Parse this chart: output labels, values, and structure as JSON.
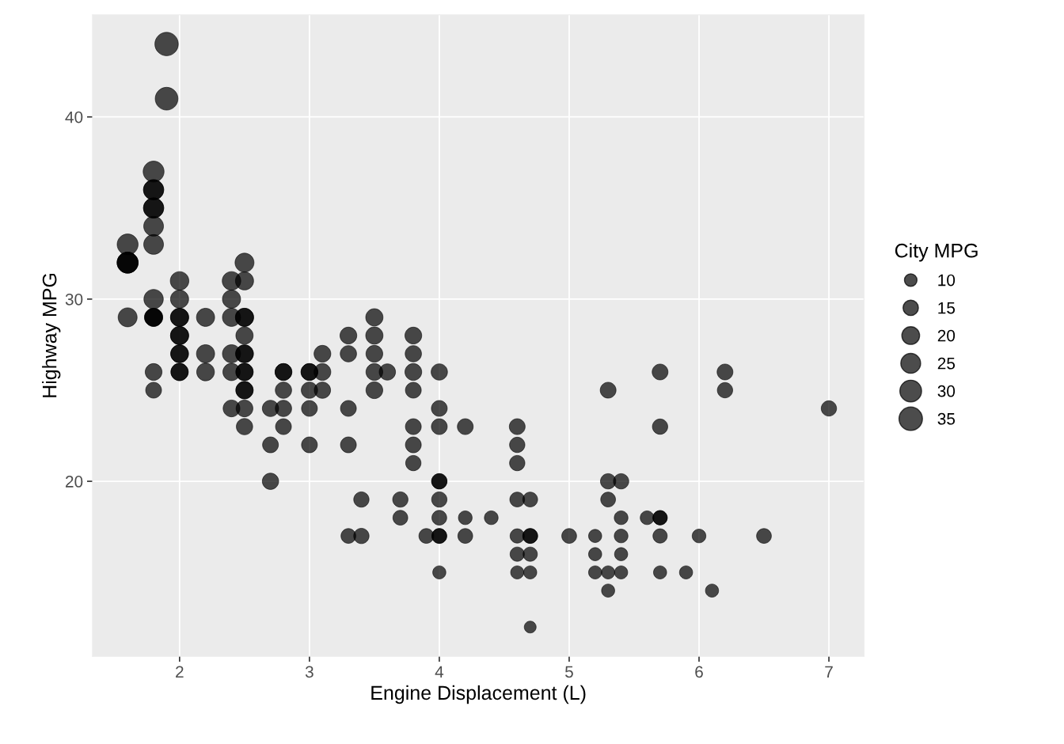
{
  "chart_data": {
    "type": "bubble",
    "xlabel": "Engine Displacement (L)",
    "ylabel": "Highway MPG",
    "legend_title": "City MPG",
    "x": [
      1.6,
      1.6,
      1.6,
      1.6,
      1.6,
      1.8,
      1.8,
      1.8,
      1.8,
      1.8,
      1.8,
      1.8,
      1.8,
      1.8,
      1.8,
      1.8,
      1.8,
      1.8,
      1.9,
      1.9,
      2.0,
      2.0,
      2.0,
      2.0,
      2.0,
      2.0,
      2.0,
      2.0,
      2.0,
      2.0,
      2.2,
      2.2,
      2.2,
      2.4,
      2.4,
      2.4,
      2.4,
      2.4,
      2.4,
      2.5,
      2.5,
      2.5,
      2.5,
      2.5,
      2.5,
      2.5,
      2.5,
      2.5,
      2.5,
      2.5,
      2.5,
      2.5,
      2.7,
      2.7,
      2.7,
      2.8,
      2.8,
      2.8,
      2.8,
      2.8,
      3.0,
      3.0,
      3.0,
      3.0,
      3.0,
      3.1,
      3.1,
      3.1,
      3.3,
      3.3,
      3.3,
      3.3,
      3.3,
      3.4,
      3.4,
      3.5,
      3.5,
      3.5,
      3.5,
      3.5,
      3.6,
      3.7,
      3.7,
      3.8,
      3.8,
      3.8,
      3.8,
      3.8,
      3.8,
      3.8,
      3.9,
      4.0,
      4.0,
      4.0,
      4.0,
      4.0,
      4.0,
      4.0,
      4.0,
      4.0,
      4.0,
      4.2,
      4.2,
      4.2,
      4.4,
      4.6,
      4.6,
      4.6,
      4.6,
      4.6,
      4.6,
      4.6,
      4.7,
      4.7,
      4.7,
      4.7,
      4.7,
      4.7,
      5.0,
      5.2,
      5.2,
      5.2,
      5.3,
      5.3,
      5.3,
      5.3,
      5.3,
      5.4,
      5.4,
      5.4,
      5.4,
      5.4,
      5.6,
      5.7,
      5.7,
      5.7,
      5.7,
      5.7,
      5.7,
      5.9,
      6.0,
      6.1,
      6.2,
      6.2,
      6.5,
      7.0
    ],
    "values": [
      33,
      32,
      32,
      32,
      29,
      37,
      36,
      36,
      35,
      35,
      34,
      33,
      30,
      29,
      29,
      29,
      26,
      25,
      44,
      41,
      31,
      30,
      29,
      29,
      28,
      28,
      27,
      27,
      26,
      26,
      29,
      27,
      26,
      31,
      30,
      29,
      27,
      26,
      24,
      32,
      31,
      29,
      29,
      28,
      27,
      27,
      26,
      26,
      25,
      25,
      24,
      23,
      24,
      22,
      20,
      26,
      26,
      25,
      24,
      23,
      26,
      26,
      25,
      24,
      22,
      27,
      26,
      25,
      28,
      27,
      24,
      22,
      17,
      19,
      17,
      29,
      28,
      27,
      26,
      25,
      26,
      19,
      18,
      28,
      27,
      26,
      25,
      23,
      22,
      21,
      17,
      26,
      24,
      23,
      20,
      20,
      19,
      18,
      17,
      17,
      15,
      23,
      18,
      17,
      18,
      23,
      22,
      21,
      19,
      17,
      16,
      15,
      19,
      17,
      17,
      16,
      15,
      12,
      17,
      17,
      16,
      15,
      25,
      20,
      19,
      15,
      14,
      20,
      18,
      17,
      16,
      15,
      18,
      26,
      23,
      18,
      18,
      17,
      15,
      15,
      17,
      14,
      26,
      25,
      17,
      24
    ],
    "sizes": [
      28,
      28,
      28,
      28,
      23,
      28,
      26,
      26,
      26,
      26,
      25,
      25,
      24,
      18,
      21,
      21,
      18,
      16,
      35,
      33,
      22,
      21,
      21,
      21,
      21,
      21,
      20,
      20,
      19,
      19,
      21,
      21,
      20,
      22,
      21,
      21,
      21,
      19,
      18,
      23,
      21,
      21,
      21,
      19,
      20,
      20,
      19,
      19,
      19,
      19,
      18,
      17,
      17,
      16,
      17,
      18,
      18,
      17,
      17,
      16,
      18,
      18,
      17,
      16,
      16,
      18,
      18,
      17,
      18,
      17,
      16,
      16,
      14,
      15,
      15,
      19,
      19,
      18,
      18,
      18,
      17,
      15,
      14,
      18,
      17,
      18,
      16,
      16,
      16,
      15,
      14,
      17,
      16,
      16,
      15,
      15,
      15,
      14,
      14,
      14,
      11,
      16,
      12,
      14,
      12,
      16,
      15,
      15,
      14,
      13,
      13,
      11,
      14,
      14,
      14,
      13,
      11,
      9,
      14,
      11,
      11,
      11,
      16,
      15,
      14,
      11,
      11,
      15,
      12,
      12,
      11,
      11,
      12,
      16,
      15,
      13,
      13,
      13,
      11,
      11,
      12,
      11,
      16,
      15,
      14,
      15
    ],
    "size_legend": [
      10,
      15,
      20,
      25,
      30,
      35
    ],
    "color": "#000000",
    "xlim": [
      1.33,
      7.27
    ],
    "ylim": [
      10.4,
      45.6
    ],
    "xticks": [
      2,
      3,
      4,
      5,
      6,
      7
    ],
    "yticks": [
      20,
      30,
      40
    ],
    "grid": true
  }
}
